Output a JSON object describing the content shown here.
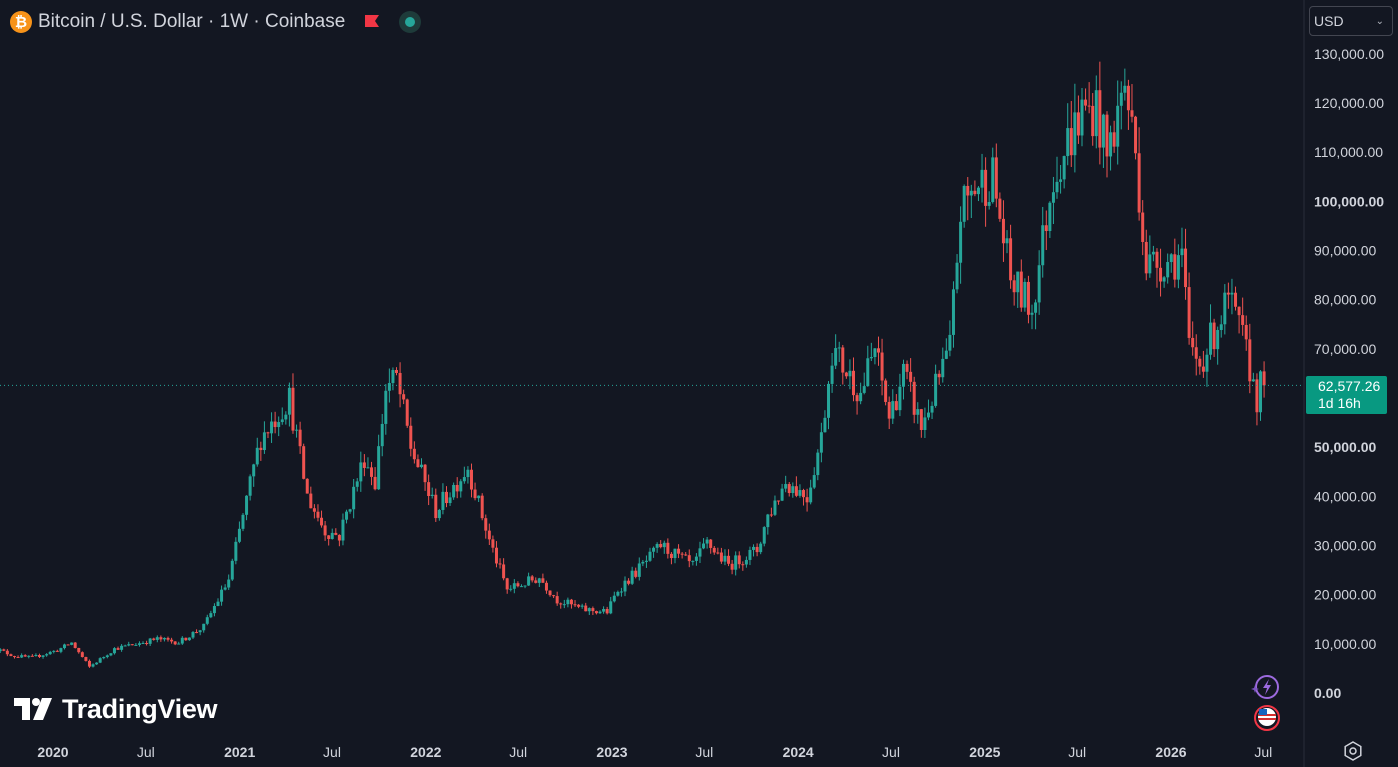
{
  "header": {
    "symbol_icon": "bitcoin-icon",
    "title": "Bitcoin / U.S. Dollar · 1W · Coinbase"
  },
  "currency": {
    "selected": "USD"
  },
  "price_label": {
    "price": "62,577.26",
    "countdown": "1d 16h"
  },
  "logo": {
    "text": "TradingView"
  },
  "colors": {
    "background": "#131722",
    "up": "#26a69a",
    "down": "#ef5350",
    "text": "#d1d4dc",
    "price_label": "#089981"
  },
  "chart_data": {
    "type": "candlestick",
    "interval": "1W",
    "ylim": [
      0,
      130000
    ],
    "yticks": [
      {
        "value": 130000,
        "label": "130,000.00"
      },
      {
        "value": 120000,
        "label": "120,000.00"
      },
      {
        "value": 110000,
        "label": "110,000.00"
      },
      {
        "value": 100000,
        "label": "100,000.00"
      },
      {
        "value": 90000,
        "label": "90,000.00"
      },
      {
        "value": 80000,
        "label": "80,000.00"
      },
      {
        "value": 70000,
        "label": "70,000.00"
      },
      {
        "value": 50000,
        "label": "50,000.00"
      },
      {
        "value": 40000,
        "label": "40,000.00"
      },
      {
        "value": 30000,
        "label": "30,000.00"
      },
      {
        "value": 20000,
        "label": "20,000.00"
      },
      {
        "value": 10000,
        "label": "10,000.00"
      },
      {
        "value": 0,
        "label": "0.00"
      }
    ],
    "bold_ticks": [
      "100,000.00",
      "50,000.00",
      "0.00"
    ],
    "xticks": [
      {
        "date": "2020-01-01",
        "label": "2020",
        "bold": true
      },
      {
        "date": "2020-07-01",
        "label": "Jul",
        "bold": false
      },
      {
        "date": "2021-01-01",
        "label": "2021",
        "bold": true
      },
      {
        "date": "2021-07-01",
        "label": "Jul",
        "bold": false
      },
      {
        "date": "2022-01-01",
        "label": "2022",
        "bold": true
      },
      {
        "date": "2022-07-01",
        "label": "Jul",
        "bold": false
      },
      {
        "date": "2023-01-01",
        "label": "2023",
        "bold": true
      },
      {
        "date": "2023-07-01",
        "label": "Jul",
        "bold": false
      },
      {
        "date": "2024-01-01",
        "label": "2024",
        "bold": true
      },
      {
        "date": "2024-07-01",
        "label": "Jul",
        "bold": false
      },
      {
        "date": "2025-01-01",
        "label": "2025",
        "bold": true
      },
      {
        "date": "2025-07-01",
        "label": "Jul",
        "bold": false
      },
      {
        "date": "2026-01-01",
        "label": "2026",
        "bold": true
      },
      {
        "date": "2026-07-01",
        "label": "Jul",
        "bold": false
      }
    ],
    "last_price": 62577.26,
    "keypoints": [
      [
        "2019-09-02",
        9500
      ],
      [
        "2019-10-21",
        7500
      ],
      [
        "2019-11-25",
        7200
      ],
      [
        "2020-01-13",
        8700
      ],
      [
        "2020-02-10",
        10200
      ],
      [
        "2020-03-16",
        5300
      ],
      [
        "2020-05-04",
        9000
      ],
      [
        "2020-07-27",
        11000
      ],
      [
        "2020-09-07",
        10300
      ],
      [
        "2020-10-26",
        13500
      ],
      [
        "2020-12-14",
        23000
      ],
      [
        "2021-01-11",
        36000
      ],
      [
        "2021-02-15",
        52000
      ],
      [
        "2021-04-12",
        60000
      ],
      [
        "2021-05-17",
        40000
      ],
      [
        "2021-06-21",
        33000
      ],
      [
        "2021-07-19",
        32000
      ],
      [
        "2021-09-06",
        48000
      ],
      [
        "2021-09-27",
        43000
      ],
      [
        "2021-10-18",
        62000
      ],
      [
        "2021-11-08",
        64000
      ],
      [
        "2021-12-06",
        50000
      ],
      [
        "2022-01-24",
        37000
      ],
      [
        "2022-03-28",
        46000
      ],
      [
        "2022-05-09",
        31000
      ],
      [
        "2022-06-13",
        21000
      ],
      [
        "2022-08-15",
        23500
      ],
      [
        "2022-09-19",
        19000
      ],
      [
        "2022-11-07",
        17000
      ],
      [
        "2022-12-26",
        16500
      ],
      [
        "2023-01-16",
        21000
      ],
      [
        "2023-03-20",
        27500
      ],
      [
        "2023-04-10",
        30000
      ],
      [
        "2023-06-12",
        25800
      ],
      [
        "2023-07-10",
        30500
      ],
      [
        "2023-08-21",
        26000
      ],
      [
        "2023-10-16",
        29000
      ],
      [
        "2023-11-06",
        36000
      ],
      [
        "2023-12-11",
        43000
      ],
      [
        "2024-01-22",
        40000
      ],
      [
        "2024-02-19",
        52000
      ],
      [
        "2024-03-11",
        70000
      ],
      [
        "2024-05-06",
        61000
      ],
      [
        "2024-06-03",
        70000
      ],
      [
        "2024-07-01",
        56000
      ],
      [
        "2024-07-29",
        65000
      ],
      [
        "2024-09-02",
        54000
      ],
      [
        "2024-10-28",
        70000
      ],
      [
        "2024-11-18",
        98000
      ],
      [
        "2024-12-16",
        103000
      ],
      [
        "2025-01-20",
        105000
      ],
      [
        "2025-02-24",
        84000
      ],
      [
        "2025-04-07",
        78000
      ],
      [
        "2025-05-19",
        106000
      ],
      [
        "2025-07-14",
        118000
      ],
      [
        "2025-08-11",
        119000
      ],
      [
        "2025-09-01",
        109000
      ],
      [
        "2025-10-06",
        124000
      ],
      [
        "2025-10-27",
        110000
      ],
      [
        "2025-11-17",
        87000
      ],
      [
        "2025-12-29",
        88000
      ],
      [
        "2026-01-26",
        89000
      ],
      [
        "2026-02-09",
        70000
      ],
      [
        "2026-03-02",
        67000
      ],
      [
        "2026-04-06",
        75000
      ],
      [
        "2026-04-27",
        80000
      ],
      [
        "2026-05-25",
        72000
      ],
      [
        "2026-06-22",
        60000
      ],
      [
        "2026-06-29",
        62577
      ]
    ]
  }
}
